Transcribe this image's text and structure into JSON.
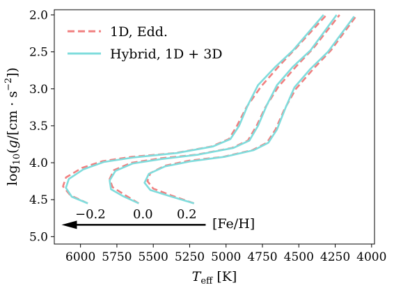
{
  "chart_data": {
    "type": "line",
    "xlabel": "T_eff [K]",
    "ylabel": "log10(g/[cm·s^-2])",
    "xlim": [
      6180,
      3980
    ],
    "ylim": [
      5.1,
      1.93
    ],
    "x_inverted": true,
    "y_inverted": true,
    "xticks": [
      6000,
      5750,
      5500,
      5250,
      5000,
      4750,
      4500,
      4250,
      4000
    ],
    "yticks": [
      2.0,
      2.5,
      3.0,
      3.5,
      4.0,
      4.5,
      5.0
    ],
    "xtick_labels": [
      "6000",
      "5750",
      "5500",
      "5250",
      "5000",
      "4750",
      "4500",
      "4250",
      "4000"
    ],
    "ytick_labels": [
      "2.0",
      "2.5",
      "3.0",
      "3.5",
      "4.0",
      "4.5",
      "5.0"
    ],
    "grid": false,
    "legend_position": "top-left",
    "legend": [
      "1D, Edd.",
      "Hybrid, 1D + 3D"
    ],
    "colors": {
      "edd": "#f08080",
      "hybrid": "#7fdcdc"
    },
    "annotations": {
      "feh_title": "[Fe/H]",
      "feh_values": [
        "−0.2",
        "0.0",
        "0.2"
      ],
      "arrow_from": [
        5140,
        4.84
      ],
      "arrow_to": [
        6130,
        4.84
      ]
    },
    "series": [
      {
        "name": "1D, Edd.",
        "metallicity": "−0.2",
        "style": "dashed",
        "x": [
          5950,
          6070,
          6120,
          6100,
          5990,
          5850,
          5650,
          5350,
          5100,
          4980,
          4925,
          4860,
          4760,
          4640,
          4520,
          4310
        ],
        "y": [
          4.55,
          4.44,
          4.32,
          4.2,
          4.07,
          3.98,
          3.92,
          3.87,
          3.78,
          3.68,
          3.5,
          3.25,
          2.97,
          2.7,
          2.45,
          2.0
        ]
      },
      {
        "name": "Hybrid, 1D + 3D",
        "metallicity": "−0.2",
        "style": "solid",
        "x": [
          5950,
          6060,
          6100,
          6080,
          5980,
          5840,
          5640,
          5340,
          5090,
          4970,
          4910,
          4850,
          4780,
          4660,
          4540,
          4330
        ],
        "y": [
          4.55,
          4.46,
          4.34,
          4.22,
          4.09,
          3.99,
          3.93,
          3.87,
          3.78,
          3.68,
          3.5,
          3.22,
          2.95,
          2.7,
          2.48,
          2.0
        ]
      },
      {
        "name": "1D, Edd.",
        "metallicity": "0.0",
        "style": "dashed",
        "x": [
          5600,
          5700,
          5780,
          5800,
          5770,
          5650,
          5450,
          5200,
          4960,
          4850,
          4790,
          4730,
          4640,
          4520,
          4400,
          4220
        ],
        "y": [
          4.55,
          4.43,
          4.33,
          4.22,
          4.1,
          4.0,
          3.94,
          3.89,
          3.8,
          3.7,
          3.5,
          3.25,
          2.97,
          2.7,
          2.45,
          2.0
        ]
      },
      {
        "name": "Hybrid, 1D + 3D",
        "metallicity": "0.0",
        "style": "solid",
        "x": [
          5600,
          5710,
          5790,
          5800,
          5760,
          5640,
          5440,
          5190,
          4950,
          4840,
          4780,
          4720,
          4650,
          4540,
          4420,
          4240
        ],
        "y": [
          4.55,
          4.45,
          4.36,
          4.24,
          4.11,
          4.01,
          3.95,
          3.89,
          3.8,
          3.7,
          3.5,
          3.22,
          2.95,
          2.7,
          2.48,
          2.0
        ]
      },
      {
        "name": "1D, Edd.",
        "metallicity": "0.2",
        "style": "dashed",
        "x": [
          5220,
          5380,
          5500,
          5540,
          5520,
          5420,
          5250,
          5020,
          4820,
          4720,
          4660,
          4600,
          4520,
          4400,
          4280,
          4100
        ],
        "y": [
          4.55,
          4.44,
          4.35,
          4.25,
          4.14,
          4.04,
          3.97,
          3.92,
          3.83,
          3.73,
          3.55,
          3.28,
          3.0,
          2.73,
          2.48,
          2.0
        ]
      },
      {
        "name": "Hybrid, 1D + 3D",
        "metallicity": "0.2",
        "style": "solid",
        "x": [
          5220,
          5390,
          5520,
          5560,
          5530,
          5420,
          5240,
          5010,
          4810,
          4710,
          4650,
          4590,
          4530,
          4420,
          4300,
          4120
        ],
        "y": [
          4.55,
          4.45,
          4.37,
          4.27,
          4.15,
          4.05,
          3.98,
          3.92,
          3.83,
          3.73,
          3.55,
          3.25,
          2.98,
          2.73,
          2.5,
          2.02
        ]
      }
    ]
  }
}
